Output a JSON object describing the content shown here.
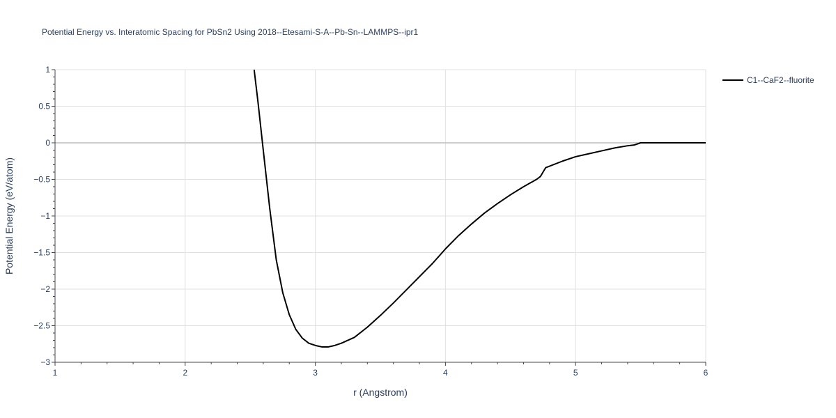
{
  "chart_data": {
    "type": "line",
    "title": "Potential Energy vs. Interatomic Spacing for PbSn2 Using 2018--Etesami-S-A--Pb-Sn--LAMMPS--ipr1",
    "xlabel": "r (Angstrom)",
    "ylabel": "Potential Energy (eV/atom)",
    "xlim": [
      1,
      6
    ],
    "ylim": [
      -3,
      1
    ],
    "x_ticks": [
      1,
      2,
      3,
      4,
      5,
      6
    ],
    "x_tick_labels": [
      "1",
      "2",
      "3",
      "4",
      "5",
      "6"
    ],
    "y_ticks": [
      1,
      0.5,
      0,
      -0.5,
      -1,
      -1.5,
      -2,
      -2.5,
      -3
    ],
    "y_tick_labels": [
      "1",
      "0.5",
      "0",
      "−0.5",
      "−1",
      "−1.5",
      "−2",
      "−2.5",
      "−3"
    ],
    "grid": true,
    "legend_position": "top-right",
    "series": [
      {
        "name": "C1--CaF2--fluorite",
        "color": "#000000",
        "x": [
          2.53,
          2.56,
          2.6,
          2.65,
          2.7,
          2.75,
          2.8,
          2.85,
          2.9,
          2.95,
          3.0,
          3.05,
          3.1,
          3.15,
          3.2,
          3.3,
          3.4,
          3.5,
          3.6,
          3.7,
          3.8,
          3.9,
          4.0,
          4.1,
          4.2,
          4.3,
          4.4,
          4.5,
          4.6,
          4.7,
          4.73,
          4.77,
          4.9,
          5.0,
          5.1,
          5.2,
          5.3,
          5.4,
          5.45,
          5.5,
          5.6,
          6.0
        ],
        "y": [
          1.0,
          0.55,
          -0.1,
          -0.9,
          -1.6,
          -2.05,
          -2.35,
          -2.55,
          -2.67,
          -2.74,
          -2.77,
          -2.79,
          -2.79,
          -2.77,
          -2.74,
          -2.66,
          -2.52,
          -2.36,
          -2.19,
          -2.01,
          -1.83,
          -1.65,
          -1.45,
          -1.27,
          -1.11,
          -0.96,
          -0.83,
          -0.71,
          -0.6,
          -0.5,
          -0.46,
          -0.34,
          -0.25,
          -0.19,
          -0.15,
          -0.11,
          -0.07,
          -0.04,
          -0.03,
          0.0,
          0.0,
          0.0
        ]
      }
    ]
  }
}
